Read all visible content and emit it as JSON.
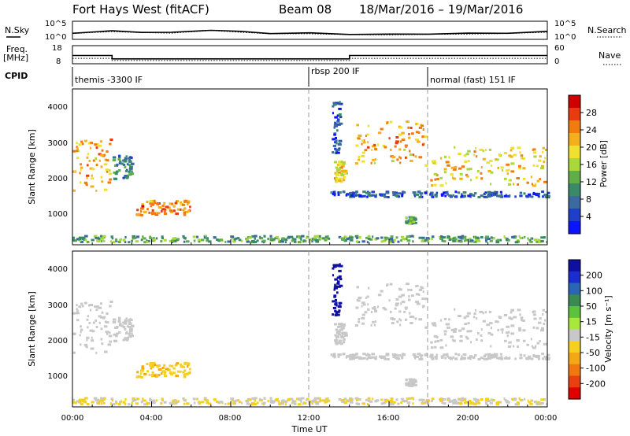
{
  "header": {
    "station": "Fort Hays West (fitACF)",
    "beam": "Beam 08",
    "date_range": "18/Mar/2016 – 19/Mar/2016"
  },
  "strips": {
    "nsky_label": "N.Sky",
    "nsearch_label": "N.Search",
    "noise_ticks_left": [
      "10^5",
      "10^0"
    ],
    "noise_ticks_right": [
      "10^5",
      "10^0"
    ],
    "freq_label_1": "Freq.",
    "freq_label_2": "[MHz]",
    "freq_ticks": [
      "18",
      "8"
    ],
    "nave_label": "Nave",
    "nave_ticks": [
      "60",
      "0"
    ],
    "cpid_label": "CPID",
    "cpid_segments": [
      {
        "label": "themis -3300 IF",
        "start_hour": 0,
        "end_hour": 12
      },
      {
        "label": "rbsp 200 IF",
        "start_hour": 12,
        "end_hour": 18
      },
      {
        "label": "normal (fast) 151 IF",
        "start_hour": 18,
        "end_hour": 24
      }
    ]
  },
  "axes": {
    "ylabel": "Slant Range [km]",
    "xlabel": "Time UT",
    "y_ticks": [
      "1000",
      "2000",
      "3000",
      "4000"
    ],
    "x_ticks": [
      "00:00",
      "04:00",
      "08:00",
      "12:00",
      "16:00",
      "20:00",
      "00:00"
    ]
  },
  "colorbars": {
    "power": {
      "label": "Power [dB]",
      "ticks": [
        "4",
        "8",
        "12",
        "16",
        "20",
        "24",
        "28"
      ],
      "colors": [
        "#0a14ff",
        "#1f3fc8",
        "#3a6aa0",
        "#3a8a6a",
        "#5fae48",
        "#a8d83a",
        "#f0e030",
        "#f4b01c",
        "#f07c10",
        "#e83c10",
        "#d00000"
      ]
    },
    "velocity": {
      "label": "Velocity [m s⁻¹]",
      "ticks": [
        "200",
        "100",
        "50",
        "15",
        "-15",
        "-50",
        "-100",
        "-200"
      ],
      "colors": [
        "#1010a0",
        "#1a2ed0",
        "#2a66b4",
        "#3a8a52",
        "#5cc23c",
        "#a8e83a",
        "#c8c8c8",
        "#f6d020",
        "#f4a818",
        "#f07810",
        "#e84010",
        "#e00000"
      ]
    }
  },
  "chart_data": {
    "type": "heatmap",
    "x_range_hours": [
      0,
      24
    ],
    "y_range_km": [
      180,
      4500
    ],
    "mode_change_hours": [
      12,
      18
    ],
    "noise_sky_log10_approx": [
      [
        0,
        1.6
      ],
      [
        2,
        2.2
      ],
      [
        3.5,
        1.9
      ],
      [
        5,
        1.7
      ],
      [
        7,
        2.6
      ],
      [
        8.5,
        2.0
      ],
      [
        10,
        1.5
      ],
      [
        12,
        1.5
      ],
      [
        14,
        1.2
      ],
      [
        16,
        1.1
      ],
      [
        18,
        1.3
      ],
      [
        20,
        1.4
      ],
      [
        22,
        1.6
      ],
      [
        24,
        2.0
      ]
    ],
    "frequency_mhz_steps": [
      {
        "start_hour": 0,
        "end_hour": 2,
        "mhz": 12.5
      },
      {
        "start_hour": 2,
        "end_hour": 14,
        "mhz": 10.2
      },
      {
        "start_hour": 14,
        "end_hour": 24,
        "mhz": 12.5
      }
    ],
    "echo_regions": [
      {
        "start_hour": 0.0,
        "end_hour": 1.9,
        "range_km": [
          1650,
          3100
        ],
        "power_db": 22,
        "velocity_ms": 0
      },
      {
        "start_hour": 2.0,
        "end_hour": 3.0,
        "range_km": [
          2000,
          2650
        ],
        "power_db": 10,
        "velocity_ms": 0
      },
      {
        "start_hour": 3.2,
        "end_hour": 5.9,
        "range_km": [
          1000,
          1400
        ],
        "power_db": 24,
        "velocity_ms": -40
      },
      {
        "start_hour": 0.0,
        "end_hour": 24.0,
        "range_km": [
          250,
          420
        ],
        "power_db": 12,
        "velocity_ms": -15
      },
      {
        "start_hour": 13.1,
        "end_hour": 13.5,
        "range_km": [
          2700,
          4200
        ],
        "power_db": 6,
        "velocity_ms": 180
      },
      {
        "start_hour": 13.2,
        "end_hour": 13.8,
        "range_km": [
          1900,
          2500
        ],
        "power_db": 20,
        "velocity_ms": 0
      },
      {
        "start_hour": 14.2,
        "end_hour": 17.8,
        "range_km": [
          2400,
          3600
        ],
        "power_db": 22,
        "velocity_ms": 0
      },
      {
        "start_hour": 17.8,
        "end_hour": 24.0,
        "range_km": [
          1800,
          2900
        ],
        "power_db": 20,
        "velocity_ms": 0
      },
      {
        "start_hour": 16.8,
        "end_hour": 17.3,
        "range_km": [
          750,
          950
        ],
        "power_db": 12,
        "velocity_ms": 0
      },
      {
        "start_hour": 13.0,
        "end_hour": 24.0,
        "range_km": [
          1500,
          1650
        ],
        "power_db": 6,
        "velocity_ms": 0
      }
    ]
  }
}
